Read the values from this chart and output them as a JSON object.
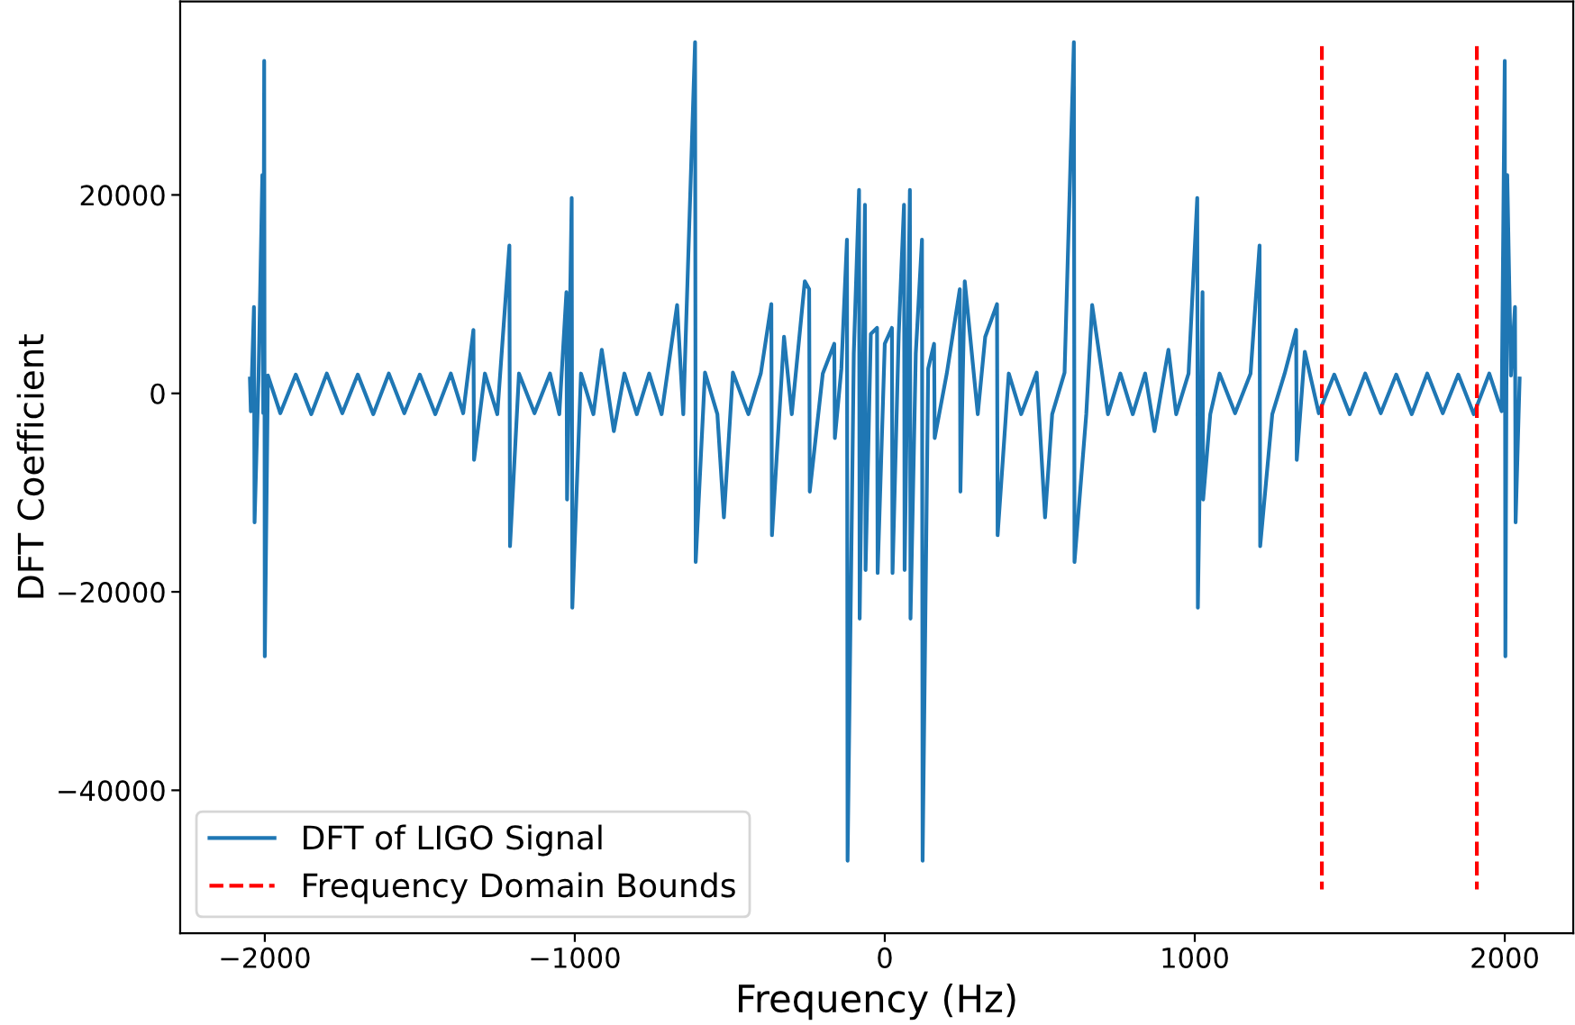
{
  "chart_data": {
    "type": "line",
    "xlabel": "Frequency (Hz)",
    "ylabel": "DFT Coefficient",
    "xlim": [
      -2273,
      2221
    ],
    "xticks": [
      {
        "value": -2000,
        "label": "−2000"
      },
      {
        "value": -1000,
        "label": "−1000"
      },
      0,
      1000,
      2000
    ],
    "ylim": [
      -54400,
      39500
    ],
    "yticks": [
      {
        "value": -40000,
        "label": "−40000"
      },
      {
        "value": -20000,
        "label": "−20000"
      },
      0,
      20000
    ],
    "grid": false,
    "legend": "bottom left",
    "series": [
      {
        "name": "DFT of LIGO Signal",
        "color": "#1f77b4",
        "line_style": "solid",
        "x": [
          -2048,
          -2045,
          -2035,
          -2033,
          -2020,
          -2008,
          -2005,
          -2002,
          -2000,
          -1990,
          -1950,
          -1900,
          -1850,
          -1800,
          -1750,
          -1700,
          -1650,
          -1600,
          -1550,
          -1500,
          -1450,
          -1400,
          -1360,
          -1327,
          -1325,
          -1290,
          -1250,
          -1211,
          -1209,
          -1180,
          -1130,
          -1080,
          -1050,
          -1027,
          -1025,
          -1010,
          -1008,
          -980,
          -940,
          -913,
          -874,
          -840,
          -800,
          -760,
          -720,
          -670,
          -650,
          -612,
          -610,
          -580,
          -540,
          -519,
          -490,
          -440,
          -400,
          -366,
          -364,
          -325,
          -300,
          -258,
          -244,
          -242,
          -200,
          -163,
          -161,
          -140,
          -122,
          -120,
          -100,
          -83,
          -81,
          -64,
          -62,
          -45,
          -25,
          -23,
          0,
          23,
          25,
          45,
          62,
          64,
          81,
          83,
          100,
          120,
          122,
          140,
          159,
          161,
          200,
          242,
          244,
          258,
          300,
          324,
          362,
          364,
          400,
          440,
          490,
          517,
          540,
          580,
          610,
          612,
          650,
          669,
          720,
          760,
          800,
          840,
          870,
          915,
          940,
          980,
          1008,
          1010,
          1025,
          1027,
          1050,
          1080,
          1130,
          1180,
          1209,
          1211,
          1250,
          1290,
          1327,
          1329,
          1355,
          1400,
          1450,
          1500,
          1550,
          1600,
          1650,
          1700,
          1750,
          1800,
          1850,
          1900,
          1950,
          1990,
          2000,
          2002,
          2005,
          2008,
          2020,
          2033,
          2035,
          2045,
          2048
        ],
        "values": [
          1500,
          -1800,
          8700,
          -13000,
          1800,
          22000,
          -2000,
          33500,
          -26500,
          1800,
          -2000,
          1900,
          -2100,
          2000,
          -2000,
          1900,
          -2100,
          2000,
          -2000,
          1900,
          -2100,
          2000,
          -2000,
          6400,
          -6700,
          2000,
          -2100,
          14900,
          -15400,
          2000,
          -2000,
          2000,
          -2100,
          10200,
          -10700,
          19700,
          -21600,
          2000,
          -2100,
          4400,
          -3800,
          2000,
          -2100,
          2000,
          -2100,
          8900,
          -2100,
          35400,
          -17000,
          2100,
          -2100,
          -12500,
          2100,
          -2100,
          2000,
          9000,
          -14300,
          5700,
          -2100,
          11300,
          10500,
          -9900,
          2000,
          5000,
          -4500,
          2500,
          15500,
          -47100,
          4000,
          20500,
          -22700,
          19000,
          -17800,
          6000,
          6600,
          -18100,
          5000,
          6600,
          -18100,
          6000,
          19000,
          -17800,
          20500,
          -22700,
          4000,
          15500,
          -47100,
          2500,
          5000,
          -4500,
          2000,
          10500,
          -9900,
          11300,
          -2100,
          5700,
          9000,
          -14300,
          2000,
          -2100,
          2100,
          -12500,
          -2100,
          2100,
          35400,
          -17000,
          -2100,
          8900,
          -2100,
          2000,
          -2100,
          2000,
          -3800,
          4400,
          -2100,
          2000,
          19700,
          -21600,
          10200,
          -10700,
          -2100,
          2000,
          -2000,
          2000,
          14900,
          -15400,
          -2100,
          2000,
          6400,
          -6700,
          4200,
          -2000,
          1900,
          -2100,
          2000,
          -2000,
          1900,
          -2100,
          2000,
          -2000,
          1900,
          -2100,
          2000,
          -1800,
          33500,
          -26500,
          -2000,
          22000,
          1800,
          8700,
          -13000,
          -1800,
          1500
        ]
      },
      {
        "name": "Frequency Domain Bounds",
        "color": "#ff0000",
        "line_style": "dashed",
        "x": [
          1410,
          1410
        ],
        "values": [
          35000,
          -50000
        ]
      },
      {
        "color": "#ff0000",
        "line_style": "dashed",
        "x": [
          1910,
          1910
        ],
        "values": [
          35000,
          -50000
        ]
      }
    ]
  }
}
